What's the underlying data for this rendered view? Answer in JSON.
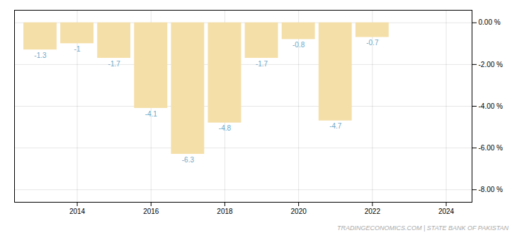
{
  "chart_data": {
    "type": "bar",
    "x": [
      2013,
      2014,
      2015,
      2016,
      2017,
      2018,
      2019,
      2020,
      2021,
      2022,
      2023
    ],
    "values": [
      -1.3,
      -1.0,
      -1.7,
      -4.1,
      -6.3,
      -4.8,
      -1.7,
      -0.8,
      -4.7,
      -0.7,
      0.0
    ],
    "value_labels": [
      "-1.3",
      "-1",
      "-1.7",
      "-4.1",
      "-6.3",
      "-4.8",
      "-1.7",
      "-0.8",
      "-4.7",
      "-0.7",
      null
    ],
    "data_labels": true,
    "color": "#f5dfa8",
    "xlim": [
      2012.3,
      2024.7
    ],
    "xticks": [
      2014,
      2016,
      2018,
      2020,
      2022,
      2024
    ],
    "ylim": [
      -8.6,
      0.6
    ],
    "yticks": [
      {
        "value": 0.0,
        "label": "0.00 %"
      },
      {
        "value": -2.0,
        "label": "-2.00 %"
      },
      {
        "value": -4.0,
        "label": "-4.00 %"
      },
      {
        "value": -6.0,
        "label": "-6.00 %"
      },
      {
        "value": -8.0,
        "label": "-8.00 %"
      }
    ],
    "grid": true,
    "annotation": "TRADINGECONOMICS.COM  |  STATE BANK OF PAKISTAN"
  }
}
